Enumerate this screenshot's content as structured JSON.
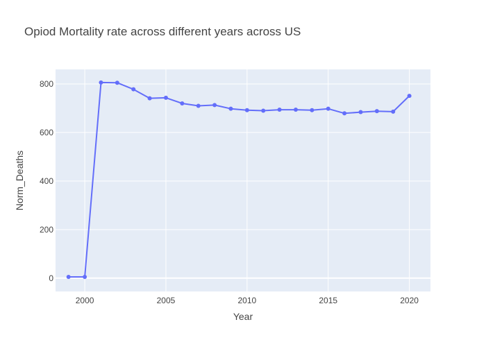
{
  "chart_data": {
    "type": "line",
    "title": "Opiod Mortality rate across different years across US",
    "xlabel": "Year",
    "ylabel": "Norm_Deaths",
    "xlim": [
      1998.2,
      2021.3
    ],
    "ylim": [
      -55,
      860
    ],
    "xticks": [
      2000,
      2005,
      2010,
      2015,
      2020
    ],
    "yticks": [
      0,
      200,
      400,
      600,
      800
    ],
    "grid": true,
    "legend": "none",
    "colors": {
      "line": "#636efa",
      "plot_bg": "#e5ecf6",
      "grid": "#ffffff"
    },
    "series": [
      {
        "x": [
          1999,
          2000,
          2001,
          2002,
          2003,
          2004,
          2005,
          2006,
          2007,
          2008,
          2009,
          2010,
          2011,
          2012,
          2013,
          2014,
          2015,
          2016,
          2017,
          2018,
          2019,
          2020
        ],
        "values": [
          5,
          5,
          806,
          805,
          778,
          741,
          743,
          720,
          710,
          713,
          698,
          692,
          690,
          694,
          694,
          692,
          698,
          679,
          684,
          688,
          686,
          751
        ]
      }
    ]
  }
}
